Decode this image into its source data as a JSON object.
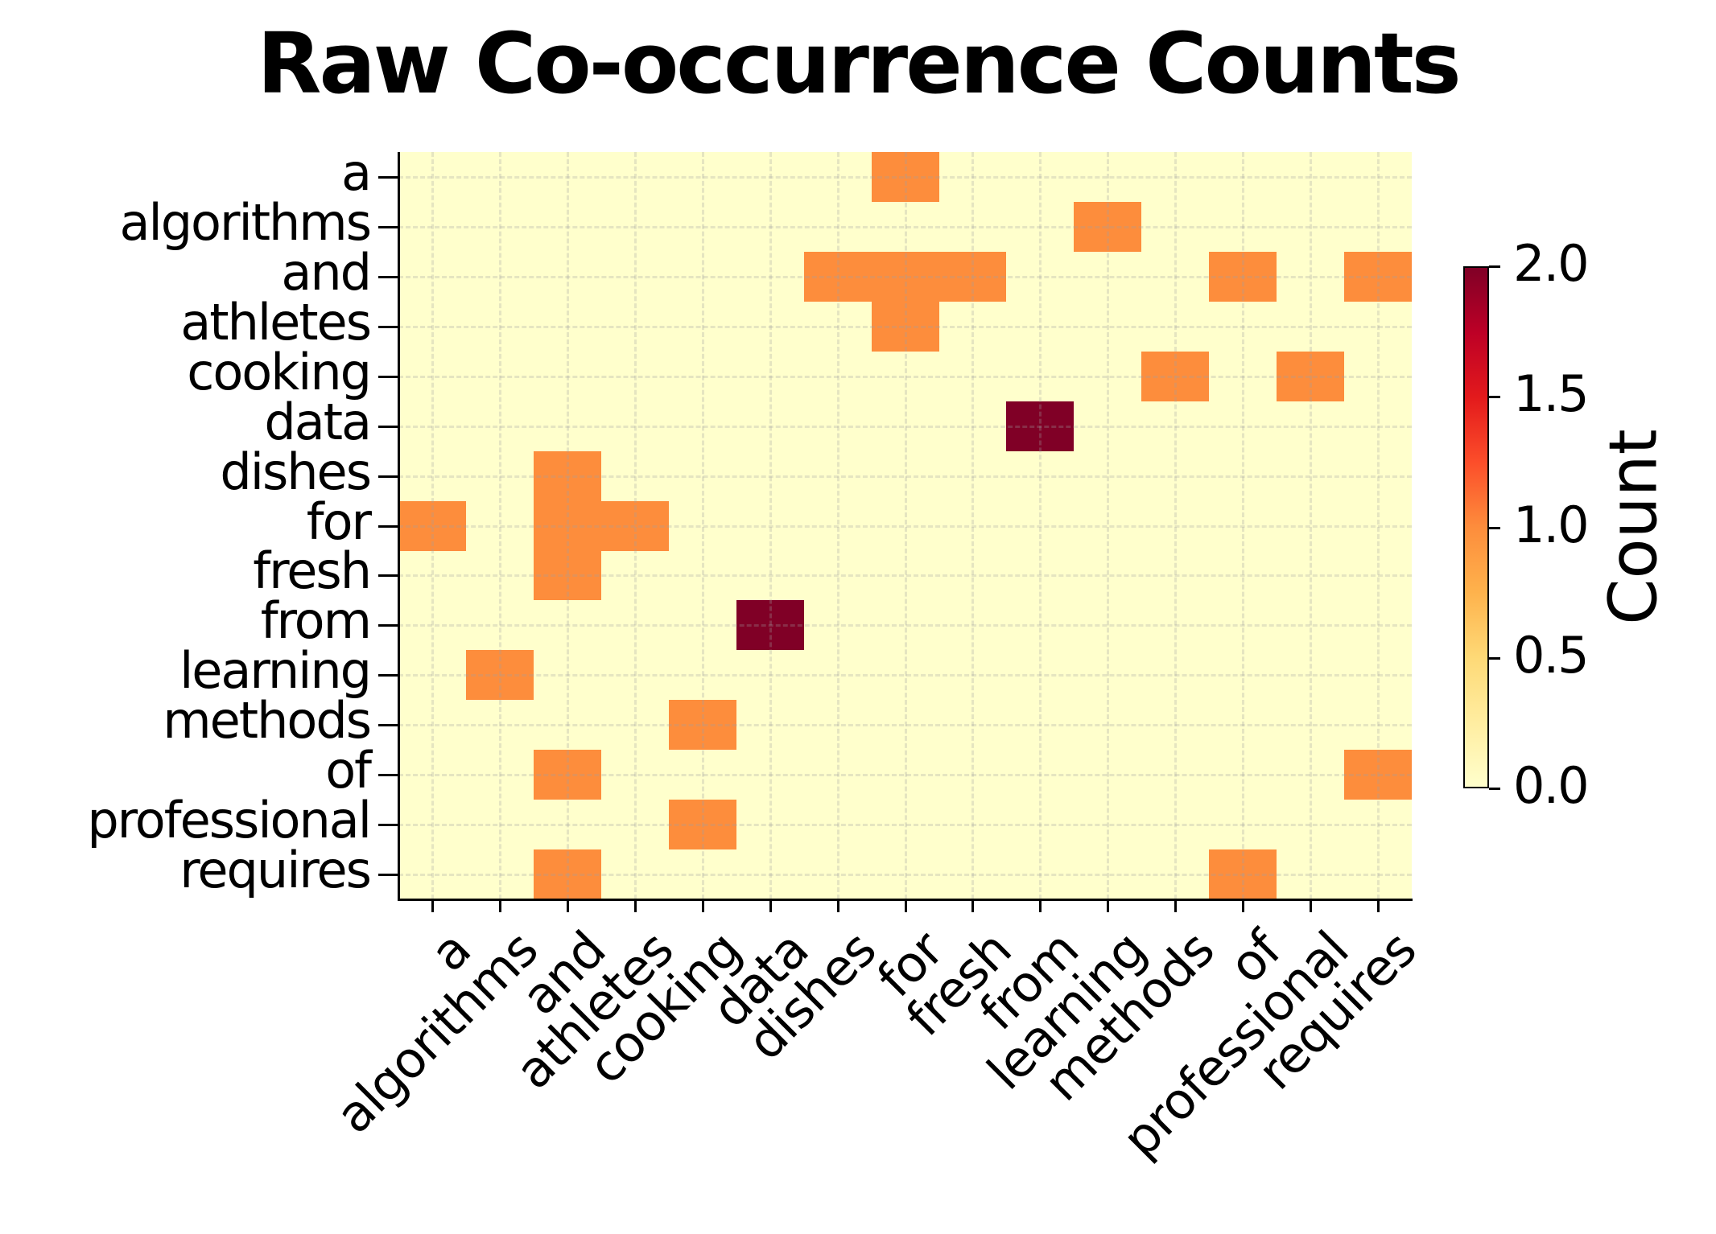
{
  "chart_data": {
    "type": "heatmap",
    "title": "Raw Co-occurrence Counts",
    "xlabel": "",
    "ylabel": "",
    "rows": [
      "a",
      "algorithms",
      "and",
      "athletes",
      "cooking",
      "data",
      "dishes",
      "for",
      "fresh",
      "from",
      "learning",
      "methods",
      "of",
      "professional",
      "requires"
    ],
    "columns": [
      "a",
      "algorithms",
      "and",
      "athletes",
      "cooking",
      "data",
      "dishes",
      "for",
      "fresh",
      "from",
      "learning",
      "methods",
      "of",
      "professional",
      "requires"
    ],
    "values": [
      [
        0,
        0,
        0,
        0,
        0,
        0,
        0,
        1,
        0,
        0,
        0,
        0,
        0,
        0,
        0
      ],
      [
        0,
        0,
        0,
        0,
        0,
        0,
        0,
        0,
        0,
        0,
        1,
        0,
        0,
        0,
        0
      ],
      [
        0,
        0,
        0,
        0,
        0,
        0,
        1,
        1,
        1,
        0,
        0,
        0,
        1,
        0,
        1
      ],
      [
        0,
        0,
        0,
        0,
        0,
        0,
        0,
        1,
        0,
        0,
        0,
        0,
        0,
        0,
        0
      ],
      [
        0,
        0,
        0,
        0,
        0,
        0,
        0,
        0,
        0,
        0,
        0,
        1,
        0,
        1,
        0
      ],
      [
        0,
        0,
        0,
        0,
        0,
        0,
        0,
        0,
        0,
        2,
        0,
        0,
        0,
        0,
        0
      ],
      [
        0,
        0,
        1,
        0,
        0,
        0,
        0,
        0,
        0,
        0,
        0,
        0,
        0,
        0,
        0
      ],
      [
        1,
        0,
        1,
        1,
        0,
        0,
        0,
        0,
        0,
        0,
        0,
        0,
        0,
        0,
        0
      ],
      [
        0,
        0,
        1,
        0,
        0,
        0,
        0,
        0,
        0,
        0,
        0,
        0,
        0,
        0,
        0
      ],
      [
        0,
        0,
        0,
        0,
        0,
        2,
        0,
        0,
        0,
        0,
        0,
        0,
        0,
        0,
        0
      ],
      [
        0,
        1,
        0,
        0,
        0,
        0,
        0,
        0,
        0,
        0,
        0,
        0,
        0,
        0,
        0
      ],
      [
        0,
        0,
        0,
        0,
        1,
        0,
        0,
        0,
        0,
        0,
        0,
        0,
        0,
        0,
        0
      ],
      [
        0,
        0,
        1,
        0,
        0,
        0,
        0,
        0,
        0,
        0,
        0,
        0,
        0,
        0,
        1
      ],
      [
        0,
        0,
        0,
        0,
        1,
        0,
        0,
        0,
        0,
        0,
        0,
        0,
        0,
        0,
        0
      ],
      [
        0,
        0,
        1,
        0,
        0,
        0,
        0,
        0,
        0,
        0,
        0,
        0,
        1,
        0,
        0
      ]
    ],
    "colorbar": {
      "label": "Count",
      "range": [
        0.0,
        2.0
      ],
      "ticks": [
        "0.0",
        "0.5",
        "1.0",
        "1.5",
        "2.0"
      ],
      "colormap": "YlOrRd"
    },
    "grid": true,
    "colors": {
      "zero": "#ffffcc",
      "one": "#fd8d3c",
      "two": "#800026"
    }
  }
}
